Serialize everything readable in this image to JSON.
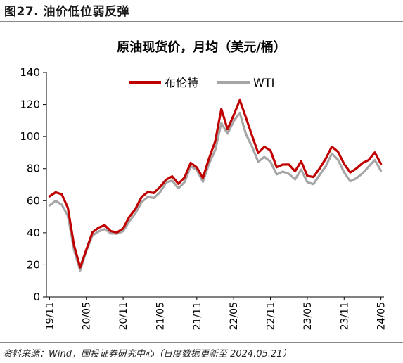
{
  "figure_title": "图27. 油价低位弱反弹",
  "source_note": "资料来源：Wind，国投证券研究中心（日度数据更新至 2024.05.21）",
  "colors": {
    "brent": "#C00000",
    "wti": "#A6A6A6",
    "axis": "#000000"
  },
  "chart_data": {
    "type": "line",
    "title": "原油现货价，月均（美元/桶）",
    "xlabel": "",
    "ylabel": "",
    "ylim": [
      0,
      140
    ],
    "yticks": [
      0,
      20,
      40,
      60,
      80,
      100,
      120,
      140
    ],
    "grid": false,
    "legend_position": "top-center",
    "x": [
      "19/11",
      "19/12",
      "20/01",
      "20/02",
      "20/03",
      "20/04",
      "20/05",
      "20/06",
      "20/07",
      "20/08",
      "20/09",
      "20/10",
      "20/11",
      "20/12",
      "21/01",
      "21/02",
      "21/03",
      "21/04",
      "21/05",
      "21/06",
      "21/07",
      "21/08",
      "21/09",
      "21/10",
      "21/11",
      "21/12",
      "22/01",
      "22/02",
      "22/03",
      "22/04",
      "22/05",
      "22/06",
      "22/07",
      "22/08",
      "22/09",
      "22/10",
      "22/11",
      "22/12",
      "23/01",
      "23/02",
      "23/03",
      "23/04",
      "23/05",
      "23/06",
      "23/07",
      "23/08",
      "23/09",
      "23/10",
      "23/11",
      "23/12",
      "24/01",
      "24/02",
      "24/03",
      "24/04",
      "24/05"
    ],
    "xtick_labels": [
      "19/11",
      "20/05",
      "20/11",
      "21/05",
      "21/11",
      "22/05",
      "22/11",
      "23/05",
      "23/11",
      "24/05"
    ],
    "series": [
      {
        "name": "布伦特",
        "values": [
          62.7,
          65.2,
          64.0,
          55.5,
          32.0,
          18.4,
          29.4,
          40.3,
          43.2,
          44.7,
          41.0,
          40.2,
          42.7,
          49.9,
          54.8,
          62.3,
          65.4,
          64.8,
          68.5,
          73.1,
          75.2,
          70.5,
          74.5,
          83.6,
          80.8,
          74.2,
          86.5,
          97.1,
          117.2,
          104.6,
          113.3,
          122.7,
          111.9,
          100.5,
          89.8,
          93.6,
          91.4,
          80.9,
          82.5,
          82.6,
          78.4,
          84.6,
          75.5,
          74.8,
          80.1,
          86.2,
          93.7,
          90.6,
          82.9,
          77.6,
          80.1,
          83.5,
          85.4,
          90.1,
          83.0
        ]
      },
      {
        "name": "WTI",
        "values": [
          57.0,
          59.9,
          57.5,
          50.5,
          29.2,
          16.5,
          28.6,
          38.3,
          40.8,
          42.3,
          39.6,
          39.4,
          41.0,
          47.1,
          52.1,
          59.1,
          62.3,
          61.7,
          65.2,
          71.4,
          72.5,
          67.7,
          71.6,
          81.5,
          79.2,
          71.8,
          83.2,
          91.6,
          108.5,
          101.8,
          109.6,
          114.8,
          101.6,
          93.7,
          84.3,
          87.3,
          84.4,
          76.4,
          78.1,
          76.8,
          73.3,
          79.4,
          71.6,
          70.3,
          76.0,
          81.4,
          89.4,
          85.6,
          77.7,
          72.1,
          74.0,
          77.1,
          81.3,
          85.4,
          78.7
        ]
      }
    ]
  }
}
